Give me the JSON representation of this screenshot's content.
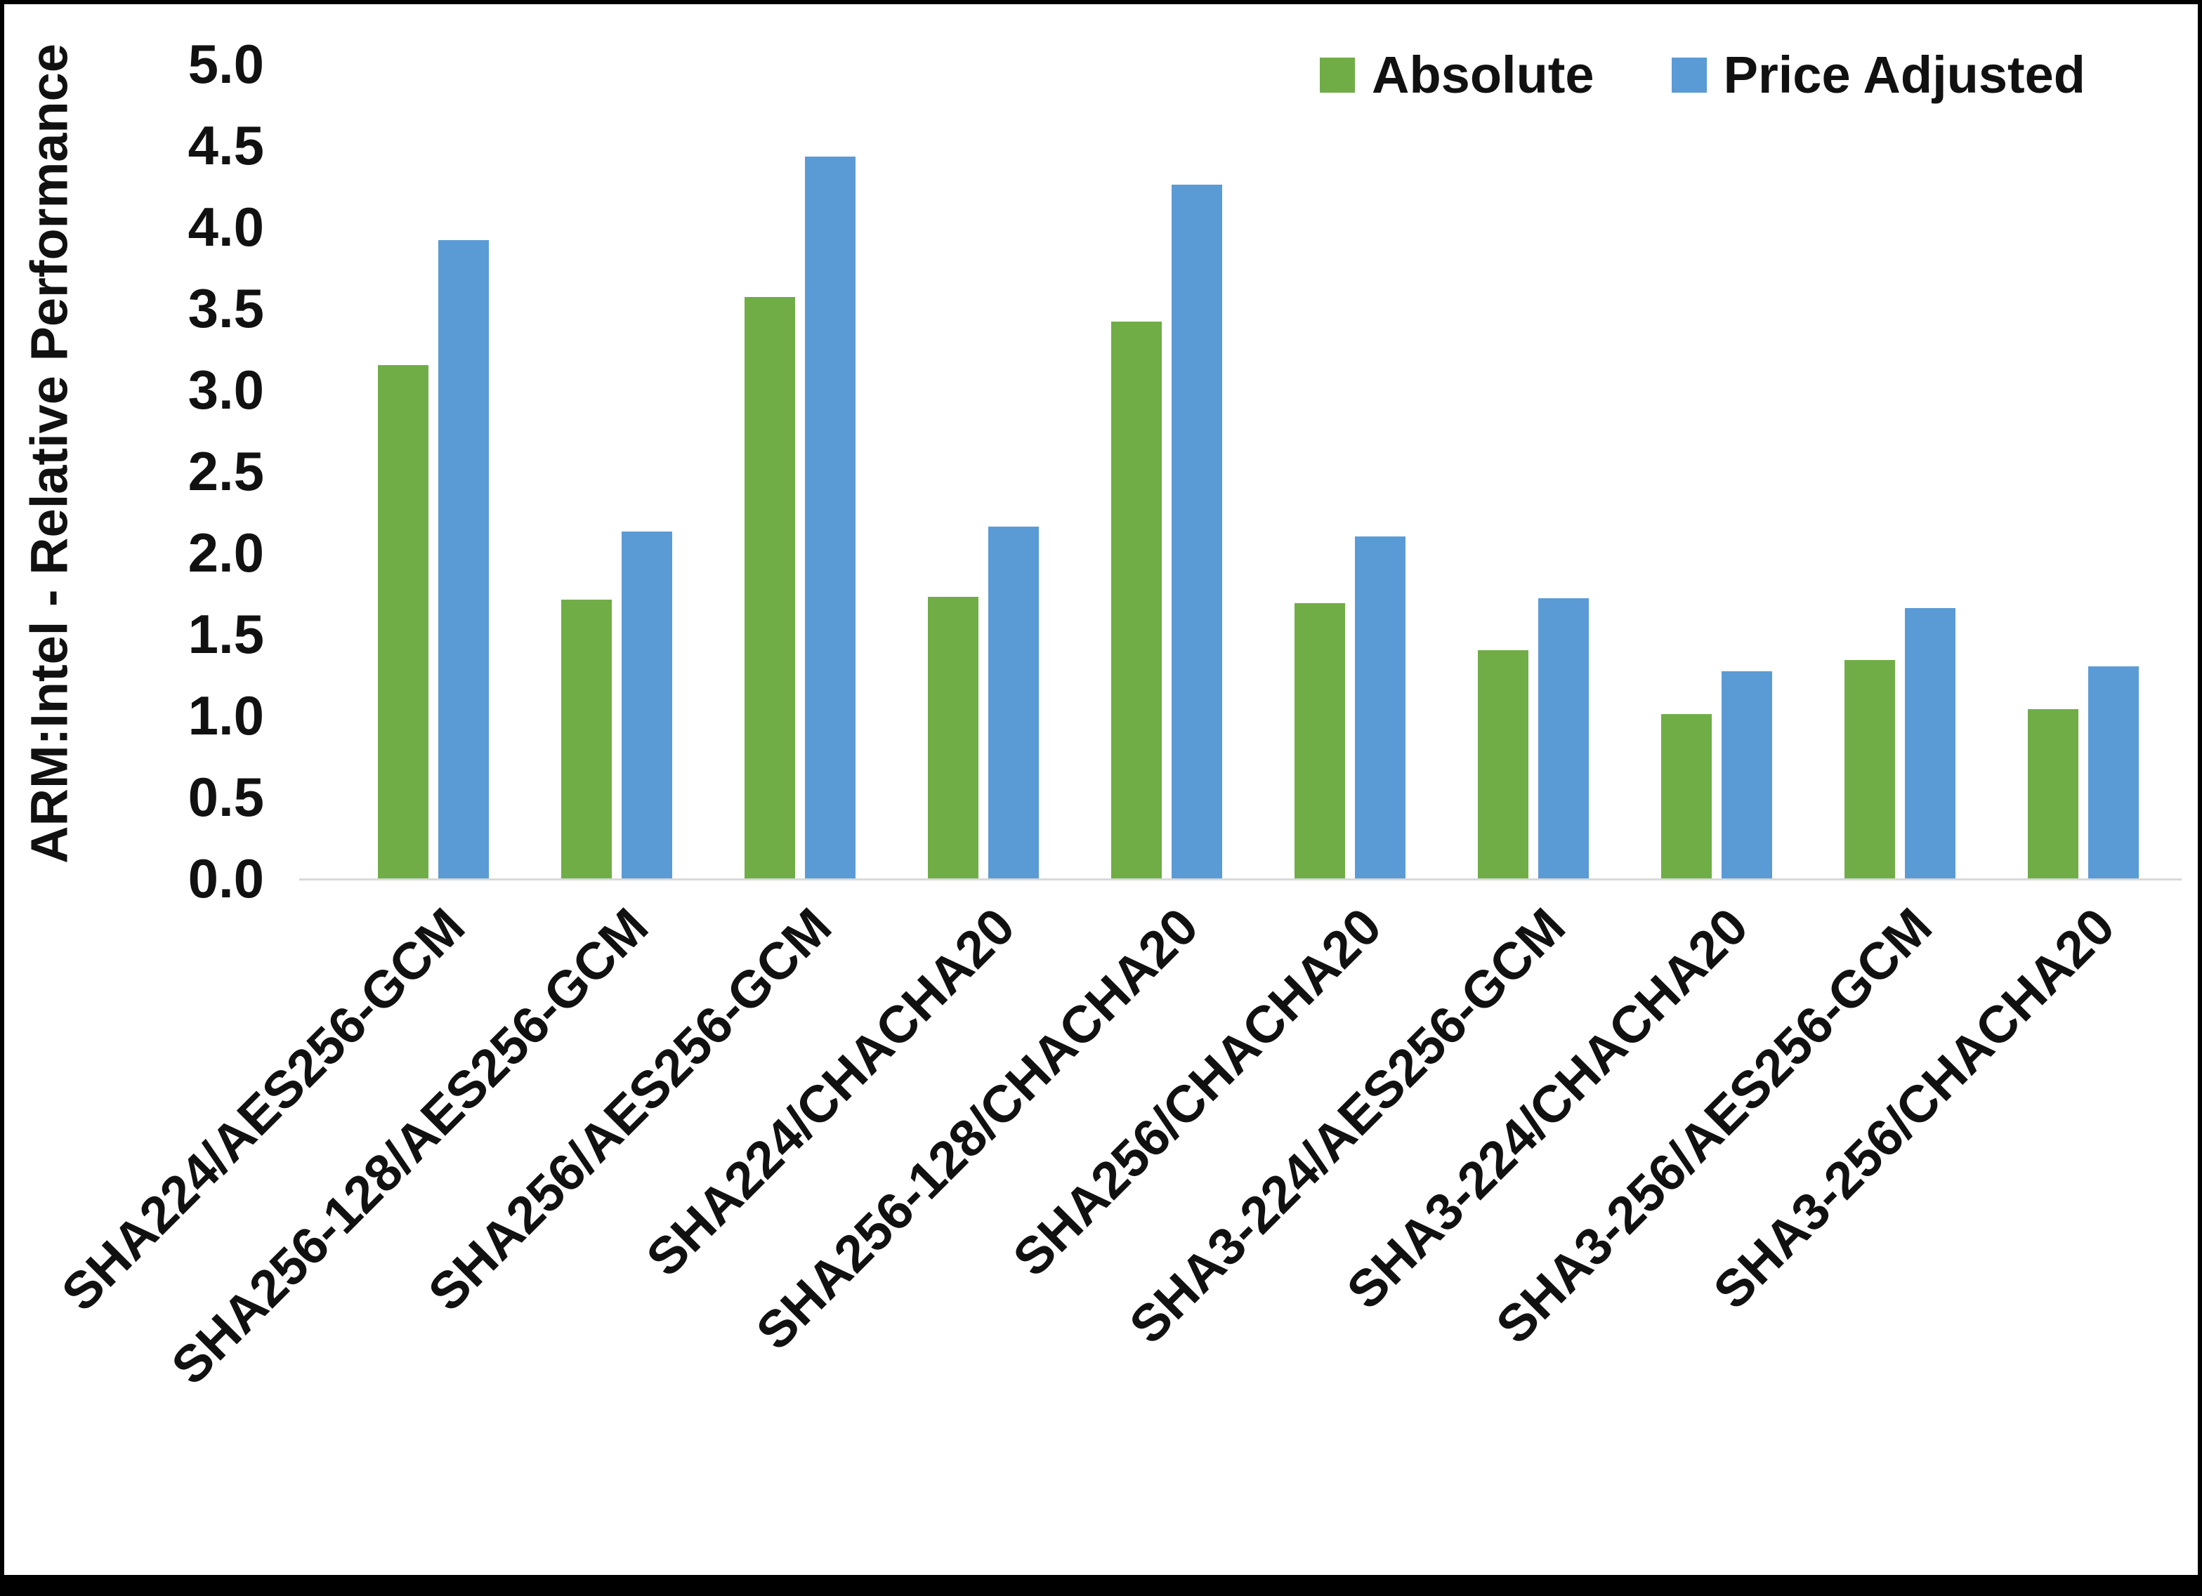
{
  "chart_data": {
    "type": "bar",
    "title": "",
    "xlabel": "",
    "ylabel": "ARM:Intel - Relative Performance",
    "ylim": [
      0,
      5
    ],
    "ytick_step": 0.5,
    "grid": false,
    "legend_position": "top-right",
    "categories": [
      "SHA224/AES256-GCM",
      "SHA256-128/AES256-GCM",
      "SHA256/AES256-GCM",
      "SHA224/CHACHA20",
      "SHA256-128/CHACHA20",
      "SHA256/CHACHA20",
      "SHA3-224/AES256-GCM",
      "SHA3-224/CHACHA20",
      "SHA3-256/AES256-GCM",
      "SHA3-256/CHACHA20"
    ],
    "series": [
      {
        "name": "Absolute",
        "color": "#70AD47",
        "values": [
          3.15,
          1.71,
          3.57,
          1.73,
          3.42,
          1.69,
          1.4,
          1.01,
          1.34,
          1.04
        ]
      },
      {
        "name": "Price Adjusted",
        "color": "#5B9BD5",
        "values": [
          3.92,
          2.13,
          4.43,
          2.16,
          4.26,
          2.1,
          1.72,
          1.27,
          1.66,
          1.3
        ]
      }
    ]
  }
}
